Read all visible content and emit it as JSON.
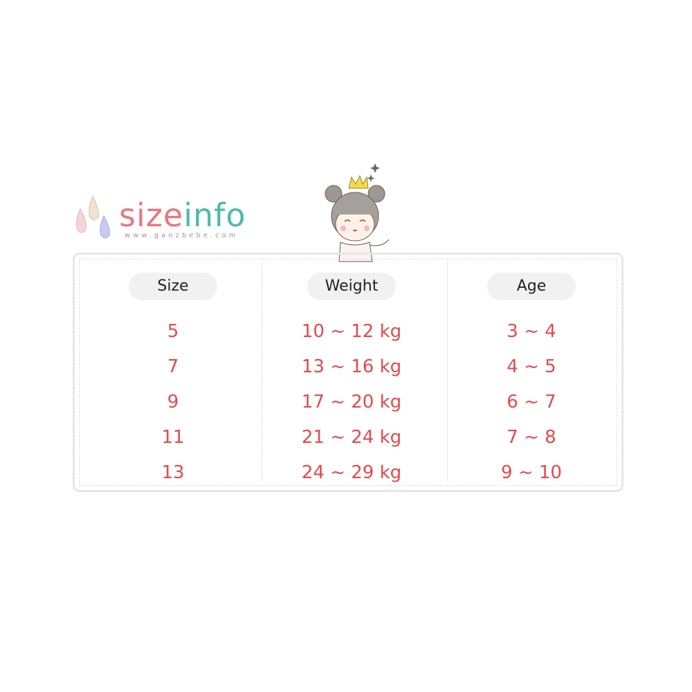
{
  "logo": {
    "word_a": "size",
    "word_b": "info",
    "url": "www.ganzbebe.com"
  },
  "colors": {
    "accent_red": "#e8484a",
    "logo_pink": "#ea7780",
    "logo_teal": "#4db9ae",
    "pill_bg": "#f1f1f1"
  },
  "table": {
    "headers": [
      "Size",
      "Weight",
      "Age"
    ],
    "rows": [
      [
        "5",
        "10 ~ 12 kg",
        "3 ~ 4"
      ],
      [
        "7",
        "13 ~ 16 kg",
        "4 ~ 5"
      ],
      [
        "9",
        "17 ~ 20 kg",
        "6 ~ 7"
      ],
      [
        "11",
        "21 ~ 24 kg",
        "7 ~ 8"
      ],
      [
        "13",
        "24 ~ 29 kg",
        "9 ~ 10"
      ]
    ]
  }
}
